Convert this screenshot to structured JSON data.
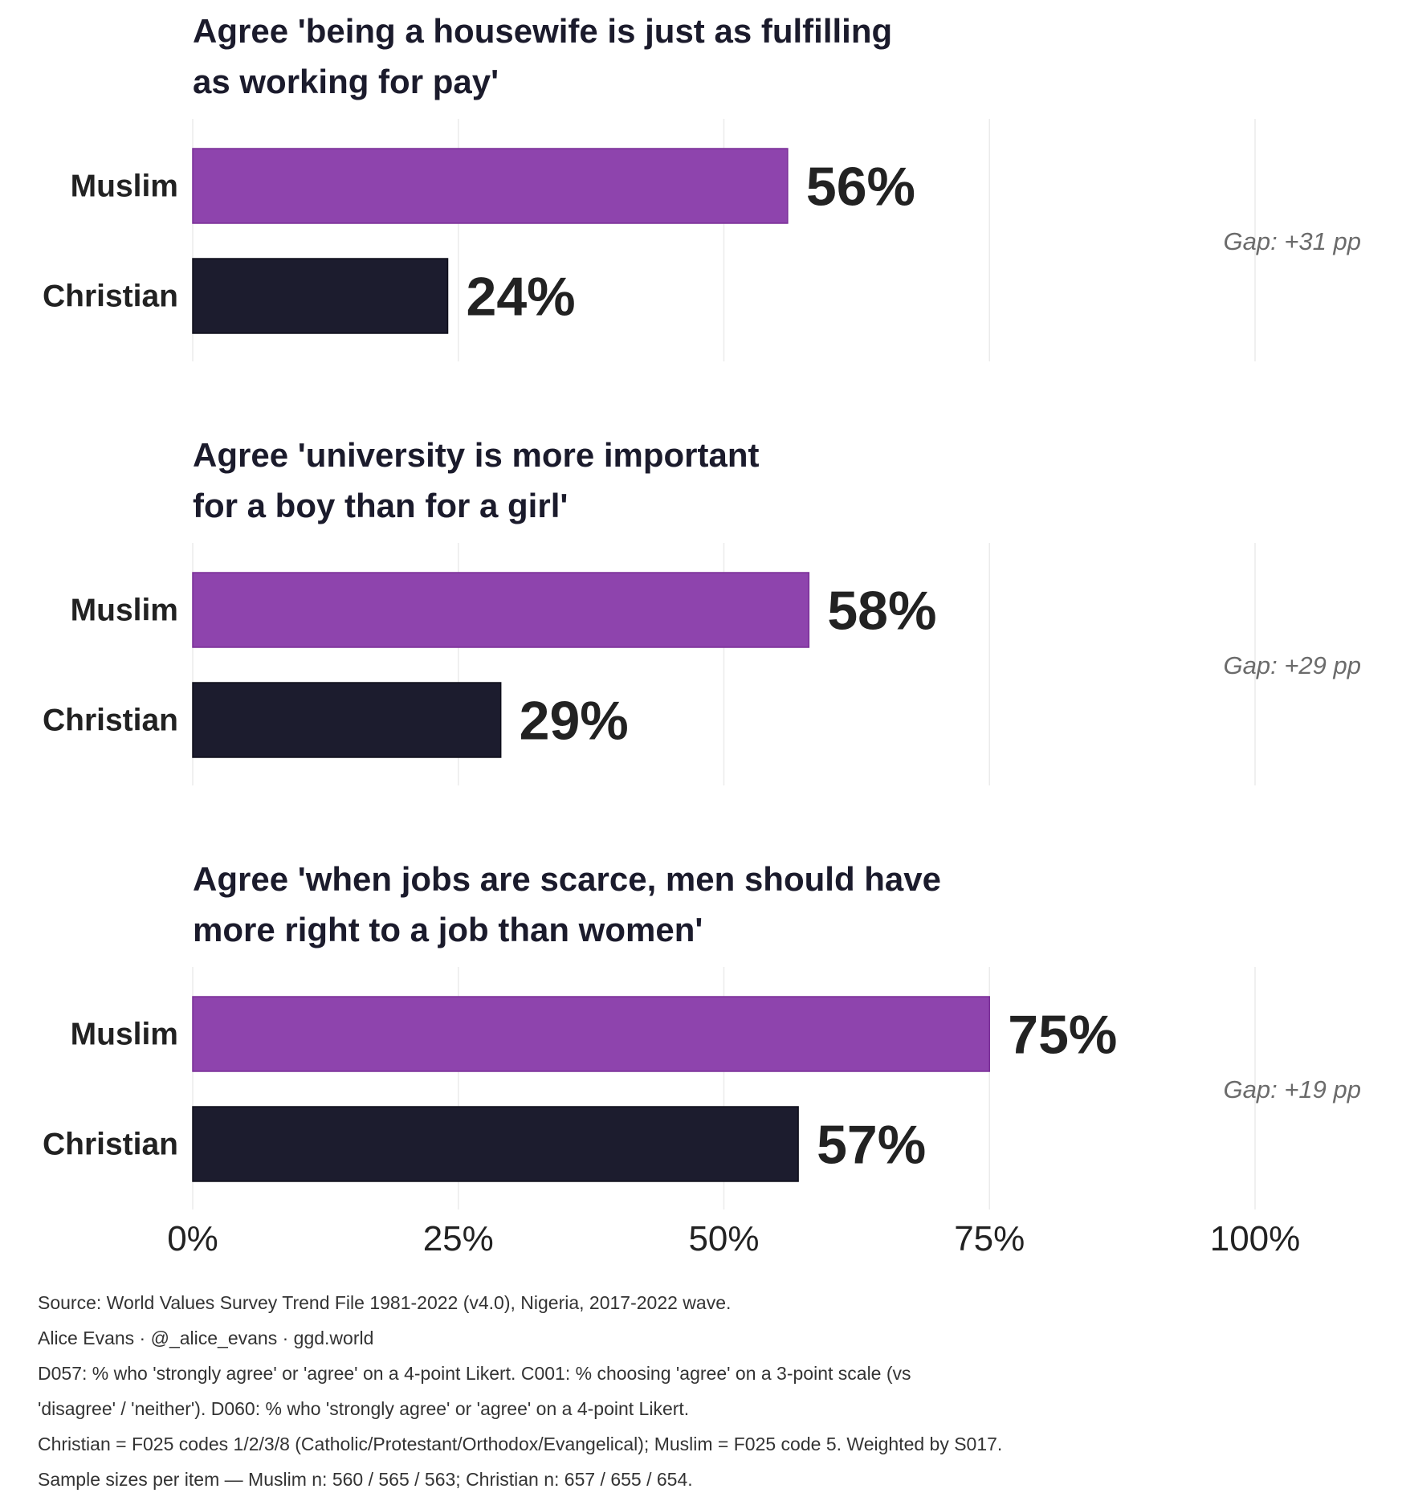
{
  "chart_data": {
    "type": "bar",
    "orientation": "horizontal",
    "xlim": [
      0,
      100
    ],
    "x_ticks": [
      "0%",
      "25%",
      "50%",
      "75%",
      "100%"
    ],
    "grid": true,
    "colors": {
      "Muslim": "#8e44ad",
      "Christian": "#1c1c2e"
    },
    "panels": [
      {
        "title_lines": [
          "Agree 'being a housewife is just as fulfilling",
          "as working for pay'"
        ],
        "categories": [
          "Muslim",
          "Christian"
        ],
        "values": [
          56,
          24
        ],
        "value_labels": [
          "56%",
          "24%"
        ],
        "annotation": "Gap: +31 pp"
      },
      {
        "title_lines": [
          "Agree 'university is more important",
          "for a boy than for a girl'"
        ],
        "categories": [
          "Muslim",
          "Christian"
        ],
        "values": [
          58,
          29
        ],
        "value_labels": [
          "58%",
          "29%"
        ],
        "annotation": "Gap: +29 pp"
      },
      {
        "title_lines": [
          "Agree 'when jobs are scarce, men should have",
          "more right to a job than women'"
        ],
        "categories": [
          "Muslim",
          "Christian"
        ],
        "values": [
          75,
          57
        ],
        "value_labels": [
          "75%",
          "57%"
        ],
        "annotation": "Gap: +19 pp"
      }
    ]
  },
  "notes": {
    "line1": "Source: World Values Survey Trend File 1981-2022 (v4.0), Nigeria, 2017-2022 wave.",
    "line2": "Alice Evans · @_alice_evans · ggd.world",
    "line3": "D057: % who 'strongly agree' or 'agree' on a 4-point Likert. C001: % choosing 'agree' on a 3-point scale (vs",
    "line4": "'disagree' / 'neither'). D060: % who 'strongly agree' or 'agree' on a 4-point Likert.",
    "line5": "Christian = F025 codes 1/2/3/8 (Catholic/Protestant/Orthodox/Evangelical); Muslim = F025 code 5. Weighted by S017.",
    "line6": "Sample sizes per item — Muslim n: 560 / 565 / 563; Christian n: 657 / 655 / 654."
  }
}
